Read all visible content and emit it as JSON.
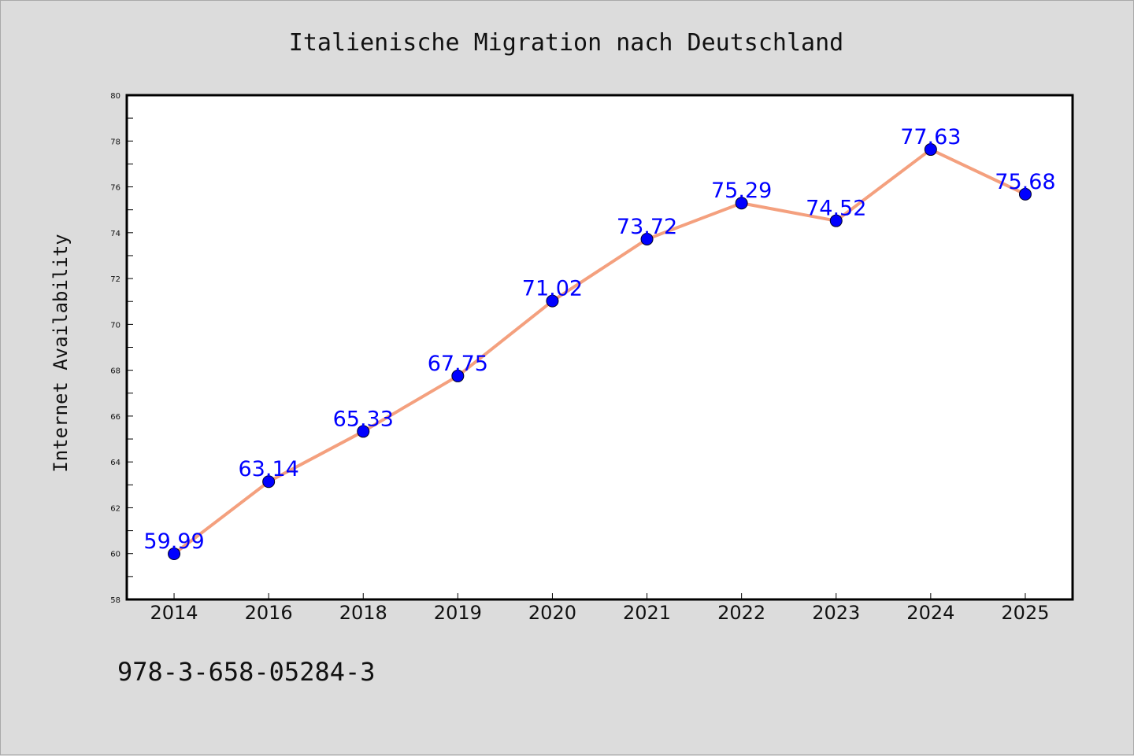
{
  "chart_data": {
    "type": "line",
    "title": "Italienische Migration nach Deutschland",
    "xlabel": "",
    "ylabel": "Internet Availability",
    "categories": [
      "2014",
      "2016",
      "2018",
      "2019",
      "2020",
      "2021",
      "2022",
      "2023",
      "2024",
      "2025"
    ],
    "series": [
      {
        "values": [
          59.99,
          63.14,
          65.33,
          67.75,
          71.02,
          73.72,
          75.29,
          74.52,
          77.63,
          75.68
        ],
        "labels": [
          "59.99",
          "63.14",
          "65.33",
          "67.75",
          "71.02",
          "73.72",
          "75.29",
          "74.52",
          "77.63",
          "75.68"
        ]
      }
    ],
    "ylim": [
      58,
      80
    ],
    "yticks": [
      "58",
      "60",
      "62",
      "64",
      "66",
      "68",
      "70",
      "72",
      "74",
      "76",
      "78",
      "80"
    ],
    "grid": false,
    "legend": "none",
    "line_color": "#f4a07e",
    "marker_color": "#0000ff",
    "label_color": "#0000ff"
  },
  "footer": {
    "isbn": "978-3-658-05284-3"
  }
}
